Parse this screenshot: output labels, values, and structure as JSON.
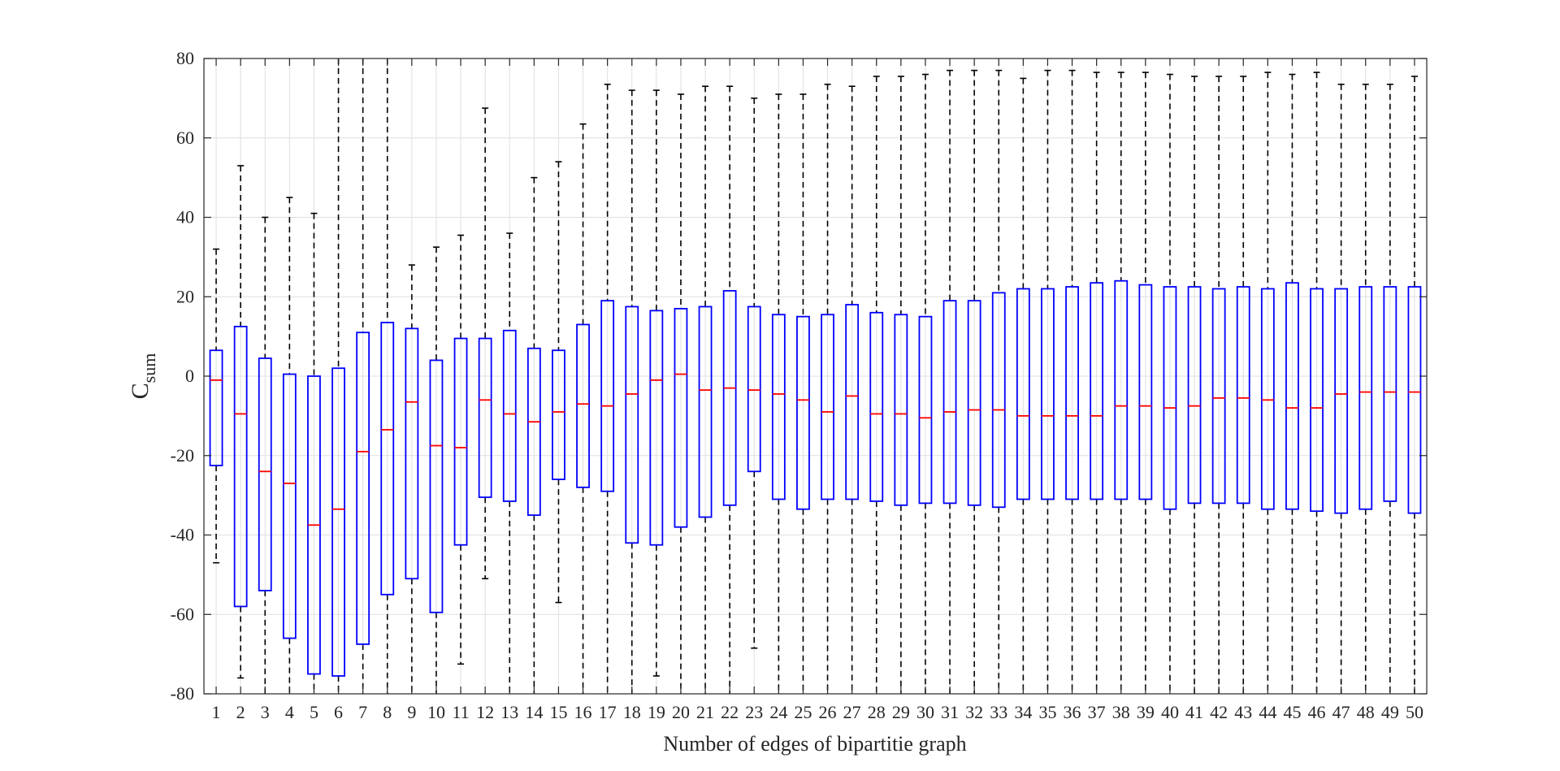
{
  "chart_data": {
    "type": "box",
    "title": "",
    "xlabel": "Number of edges of bipartitie graph",
    "ylabel": {
      "main": "C",
      "subscript": "sum"
    },
    "ylim": [
      -80,
      80
    ],
    "yticks": [
      -80,
      -60,
      -40,
      -20,
      0,
      20,
      40,
      60,
      80
    ],
    "grid": true,
    "colors": {
      "box": "#0000ff",
      "median": "#ff0000",
      "whisker": "#000000",
      "grid": "#dfdfdf"
    },
    "categories": [
      "1",
      "2",
      "3",
      "4",
      "5",
      "6",
      "7",
      "8",
      "9",
      "10",
      "11",
      "12",
      "13",
      "14",
      "15",
      "16",
      "17",
      "18",
      "19",
      "20",
      "21",
      "22",
      "23",
      "24",
      "25",
      "26",
      "27",
      "28",
      "29",
      "30",
      "31",
      "32",
      "33",
      "34",
      "35",
      "36",
      "37",
      "38",
      "39",
      "40",
      "41",
      "42",
      "43",
      "44",
      "45",
      "46",
      "47",
      "48",
      "49",
      "50"
    ],
    "boxes": [
      {
        "upper": 32,
        "q3": 6.5,
        "median": -1,
        "q1": -22.5,
        "lower": -47
      },
      {
        "upper": 53,
        "q3": 12.5,
        "median": -9.5,
        "q1": -58,
        "lower": -76
      },
      {
        "upper": 40,
        "q3": 4.5,
        "median": -24,
        "q1": -54,
        "lower": -80
      },
      {
        "upper": 45,
        "q3": 0.5,
        "median": -27,
        "q1": -66,
        "lower": -80
      },
      {
        "upper": 41,
        "q3": 0,
        "median": -37.5,
        "q1": -75,
        "lower": -80
      },
      {
        "upper": 80,
        "q3": 2,
        "median": -33.5,
        "q1": -75.5,
        "lower": -80
      },
      {
        "upper": 80,
        "q3": 11,
        "median": -19,
        "q1": -67.5,
        "lower": -80
      },
      {
        "upper": 80,
        "q3": 13.5,
        "median": -13.5,
        "q1": -55,
        "lower": -80
      },
      {
        "upper": 28,
        "q3": 12,
        "median": -6.5,
        "q1": -51,
        "lower": -80
      },
      {
        "upper": 32.5,
        "q3": 4,
        "median": -17.5,
        "q1": -59.5,
        "lower": -80
      },
      {
        "upper": 35.5,
        "q3": 9.5,
        "median": -18,
        "q1": -42.5,
        "lower": -72.5
      },
      {
        "upper": 67.5,
        "q3": 9.5,
        "median": -6,
        "q1": -30.5,
        "lower": -51
      },
      {
        "upper": 36,
        "q3": 11.5,
        "median": -9.5,
        "q1": -31.5,
        "lower": -80
      },
      {
        "upper": 50,
        "q3": 7,
        "median": -11.5,
        "q1": -35,
        "lower": -80
      },
      {
        "upper": 54,
        "q3": 6.5,
        "median": -9,
        "q1": -26,
        "lower": -57
      },
      {
        "upper": 63.5,
        "q3": 13,
        "median": -7,
        "q1": -28,
        "lower": -80
      },
      {
        "upper": 73.5,
        "q3": 19,
        "median": -7.5,
        "q1": -29,
        "lower": -80
      },
      {
        "upper": 72,
        "q3": 17.5,
        "median": -4.5,
        "q1": -42,
        "lower": -80
      },
      {
        "upper": 72,
        "q3": 16.5,
        "median": -1,
        "q1": -42.5,
        "lower": -75.5
      },
      {
        "upper": 71,
        "q3": 17,
        "median": 0.5,
        "q1": -38,
        "lower": -80
      },
      {
        "upper": 73,
        "q3": 17.5,
        "median": -3.5,
        "q1": -35.5,
        "lower": -80
      },
      {
        "upper": 73,
        "q3": 21.5,
        "median": -3,
        "q1": -32.5,
        "lower": -80
      },
      {
        "upper": 70,
        "q3": 17.5,
        "median": -3.5,
        "q1": -24,
        "lower": -68.5
      },
      {
        "upper": 71,
        "q3": 15.5,
        "median": -4.5,
        "q1": -31,
        "lower": -80
      },
      {
        "upper": 71,
        "q3": 15,
        "median": -6,
        "q1": -33.5,
        "lower": -80
      },
      {
        "upper": 73.5,
        "q3": 15.5,
        "median": -9,
        "q1": -31,
        "lower": -80
      },
      {
        "upper": 73,
        "q3": 18,
        "median": -5,
        "q1": -31,
        "lower": -80
      },
      {
        "upper": 75.5,
        "q3": 16,
        "median": -9.5,
        "q1": -31.5,
        "lower": -80
      },
      {
        "upper": 75.5,
        "q3": 15.5,
        "median": -9.5,
        "q1": -32.5,
        "lower": -80
      },
      {
        "upper": 76,
        "q3": 15,
        "median": -10.5,
        "q1": -32,
        "lower": -80
      },
      {
        "upper": 77,
        "q3": 19,
        "median": -9,
        "q1": -32,
        "lower": -80
      },
      {
        "upper": 77,
        "q3": 19,
        "median": -8.5,
        "q1": -32.5,
        "lower": -80
      },
      {
        "upper": 77,
        "q3": 21,
        "median": -8.5,
        "q1": -33,
        "lower": -80
      },
      {
        "upper": 75,
        "q3": 22,
        "median": -10,
        "q1": -31,
        "lower": -80
      },
      {
        "upper": 77,
        "q3": 22,
        "median": -10,
        "q1": -31,
        "lower": -80
      },
      {
        "upper": 77,
        "q3": 22.5,
        "median": -10,
        "q1": -31,
        "lower": -80
      },
      {
        "upper": 76.5,
        "q3": 23.5,
        "median": -10,
        "q1": -31,
        "lower": -80
      },
      {
        "upper": 76.5,
        "q3": 24,
        "median": -7.5,
        "q1": -31,
        "lower": -80
      },
      {
        "upper": 76.5,
        "q3": 23,
        "median": -7.5,
        "q1": -31,
        "lower": -80
      },
      {
        "upper": 76,
        "q3": 22.5,
        "median": -8,
        "q1": -33.5,
        "lower": -80
      },
      {
        "upper": 75.5,
        "q3": 22.5,
        "median": -7.5,
        "q1": -32,
        "lower": -80
      },
      {
        "upper": 75.5,
        "q3": 22,
        "median": -5.5,
        "q1": -32,
        "lower": -80
      },
      {
        "upper": 75.5,
        "q3": 22.5,
        "median": -5.5,
        "q1": -32,
        "lower": -80
      },
      {
        "upper": 76.5,
        "q3": 22,
        "median": -6,
        "q1": -33.5,
        "lower": -80
      },
      {
        "upper": 76,
        "q3": 23.5,
        "median": -8,
        "q1": -33.5,
        "lower": -80
      },
      {
        "upper": 76.5,
        "q3": 22,
        "median": -8,
        "q1": -34,
        "lower": -80
      },
      {
        "upper": 73.5,
        "q3": 22,
        "median": -4.5,
        "q1": -34.5,
        "lower": -80
      },
      {
        "upper": 73.5,
        "q3": 22.5,
        "median": -4,
        "q1": -33.5,
        "lower": -80
      },
      {
        "upper": 73.5,
        "q3": 22.5,
        "median": -4,
        "q1": -31.5,
        "lower": -80
      },
      {
        "upper": 75.5,
        "q3": 22.5,
        "median": -4,
        "q1": -34.5,
        "lower": -80
      }
    ]
  }
}
